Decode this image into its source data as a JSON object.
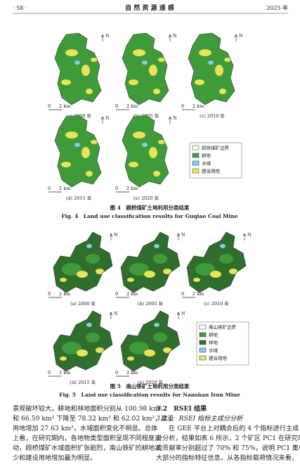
{
  "header": {
    "page": "· 58 ·",
    "journal": "自 然 资 源 遥 感",
    "year": "2025 年"
  },
  "figure4": {
    "panels": [
      "(a) 2000 年",
      "(b) 2005 年",
      "(c) 2010 年",
      "(d) 2015 年",
      "(e) 2020 年"
    ],
    "north": "N",
    "scale_zero": "0",
    "scale_unit": "2 km",
    "legend": [
      "顾桥煤矿边界",
      "耕地",
      "水域",
      "建设用地"
    ],
    "caption_cn": "图 4　顾桥煤矿土地利用分类结果",
    "caption_en": "Fig. 4　Land use classification results for Guqiao Coal Mine"
  },
  "figure5": {
    "panels": [
      "(a) 2000 年",
      "(b) 2005 年",
      "(c) 2010 年",
      "(d) 2015 年",
      "(e) 2020 年"
    ],
    "north": "N",
    "scale_zero": "0",
    "scale_unit": "2 km",
    "legend": [
      "南山铁矿边界",
      "耕地",
      "林地",
      "水域",
      "建设用地"
    ],
    "caption_cn": "图 5　南山铁矿土地利用分类结果",
    "caption_en": "Fig. 5　Land use classification results for Nanshan Iron Mine"
  },
  "body": {
    "left": [
      "景观破坏较大，耕地和林地面积分别从 100.98 km²",
      "和 66.59 km² 下降至 78.32 km² 和 62.02 km²，建设",
      "用地增加 27.63 km²，水域面积变化不明显。总体",
      "上看，在研究期内，各地物类型面积呈现不同程度波",
      "动，顾桥煤矿水域面积扩张剧烈，南山铁矿的耕地减",
      "少和建设用地增加最为明显。"
    ],
    "right": {
      "section": "3.2　RSEI 结果",
      "subsection": "3.2.1　RSEI 指标主成分分析",
      "lines": [
        "在 GEE 平台上对耦合后的 4 个指标进行主成",
        "分分析，结果如表 6 所示，2 个矿区 PC1 在研究年间",
        "的贡献率分别超过了 70% 和 75%，说明 PC1 集中了",
        "大部分的指标特征信息。从各指标载荷情况来看，"
      ]
    }
  }
}
